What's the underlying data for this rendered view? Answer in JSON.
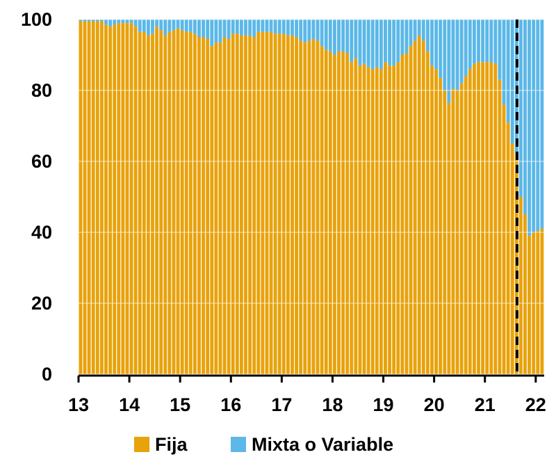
{
  "chart_data": {
    "type": "stacked-bar",
    "categories": [
      "13",
      null,
      null,
      null,
      null,
      null,
      null,
      null,
      null,
      null,
      null,
      null,
      "14",
      null,
      null,
      null,
      null,
      null,
      null,
      null,
      null,
      null,
      null,
      null,
      "15",
      null,
      null,
      null,
      null,
      null,
      null,
      null,
      null,
      null,
      null,
      null,
      "16",
      null,
      null,
      null,
      null,
      null,
      null,
      null,
      null,
      null,
      null,
      null,
      "17",
      null,
      null,
      null,
      null,
      null,
      null,
      null,
      null,
      null,
      null,
      null,
      "18",
      null,
      null,
      null,
      null,
      null,
      null,
      null,
      null,
      null,
      null,
      null,
      "19",
      null,
      null,
      null,
      null,
      null,
      null,
      null,
      null,
      null,
      null,
      null,
      "20",
      null,
      null,
      null,
      null,
      null,
      null,
      null,
      null,
      null,
      null,
      null,
      "21",
      null,
      null,
      null,
      null,
      null,
      null,
      null,
      null,
      null,
      null,
      null,
      "22",
      null
    ],
    "series": [
      {
        "name": "Fija",
        "color": "#E8A20C",
        "values": [
          99.5,
          99.5,
          99.5,
          99.5,
          99.5,
          99.5,
          98.5,
          98,
          98.5,
          99,
          99,
          99,
          99,
          98,
          96.5,
          96.5,
          95.5,
          96,
          98,
          97,
          95.5,
          96.5,
          97,
          97.5,
          97,
          96.5,
          96.5,
          96,
          95,
          95,
          94.5,
          92.5,
          93.5,
          93.5,
          95,
          94.5,
          96,
          96,
          95.5,
          95.5,
          95.5,
          95,
          96.5,
          96.5,
          96.5,
          96.5,
          96,
          96,
          96,
          95.5,
          95.5,
          95,
          94,
          93.5,
          94,
          94.5,
          94,
          92.5,
          91.5,
          91,
          90,
          91,
          91,
          90.5,
          88,
          89,
          87,
          87.5,
          86.5,
          86,
          86.5,
          86,
          88,
          87,
          87,
          88,
          90,
          90.5,
          92.5,
          94,
          95.5,
          94,
          91,
          87,
          86,
          83.5,
          80,
          76.5,
          80.5,
          80,
          82,
          84,
          86,
          87.5,
          88,
          88,
          88,
          88,
          87.5,
          83,
          76,
          71,
          65,
          62,
          50,
          45,
          39,
          40,
          40.5,
          41
        ]
      },
      {
        "name": "Mixta o Variable",
        "color": "#5BB8E8",
        "values": [
          0.5,
          0.5,
          0.5,
          0.5,
          0.5,
          0.5,
          1.5,
          2,
          1.5,
          1,
          1,
          1,
          1,
          2,
          3.5,
          3.5,
          4.5,
          4,
          2,
          3,
          4.5,
          3.5,
          3,
          2.5,
          3,
          3.5,
          3.5,
          4,
          5,
          5,
          5.5,
          7.5,
          6.5,
          6.5,
          5,
          5.5,
          4,
          4,
          4.5,
          4.5,
          4.5,
          5,
          3.5,
          3.5,
          3.5,
          3.5,
          4,
          4,
          4,
          4.5,
          4.5,
          5,
          6,
          6.5,
          6,
          5.5,
          6,
          7.5,
          8.5,
          9,
          10,
          9,
          9,
          9.5,
          12,
          11,
          13,
          12.5,
          13.5,
          14,
          13.5,
          14,
          12,
          13,
          13,
          12,
          10,
          9.5,
          7.5,
          6,
          4.5,
          6,
          9,
          13,
          14,
          16.5,
          20,
          23.5,
          19.5,
          20,
          18,
          16,
          14,
          12.5,
          12,
          12,
          12,
          12,
          12.5,
          17,
          24,
          29,
          35,
          38,
          50,
          55,
          61,
          60,
          59.5,
          59
        ]
      }
    ],
    "ylim": [
      0,
      100
    ],
    "yticks": [
      0,
      20,
      40,
      60,
      80,
      100
    ],
    "grid": true
  }
}
